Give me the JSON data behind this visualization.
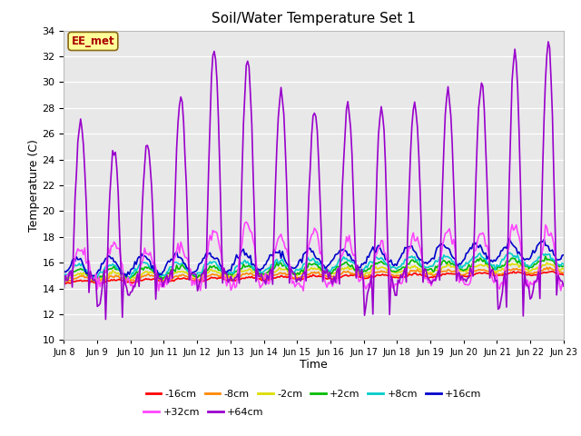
{
  "title": "Soil/Water Temperature Set 1",
  "xlabel": "Time",
  "ylabel": "Temperature (C)",
  "ylim": [
    10,
    34
  ],
  "yticks": [
    10,
    12,
    14,
    16,
    18,
    20,
    22,
    24,
    26,
    28,
    30,
    32,
    34
  ],
  "bg_color": "#e8e8e8",
  "fig_color": "#ffffff",
  "annotation_text": "EE_met",
  "annotation_bg": "#ffff99",
  "annotation_border": "#8b6914",
  "series_order": [
    "-16cm",
    "-8cm",
    "-2cm",
    "+2cm",
    "+8cm",
    "+16cm",
    "+32cm",
    "+64cm"
  ],
  "series": {
    "-16cm": {
      "color": "#ff0000",
      "lw": 1.2
    },
    "-8cm": {
      "color": "#ff8800",
      "lw": 1.2
    },
    "-2cm": {
      "color": "#dddd00",
      "lw": 1.2
    },
    "+2cm": {
      "color": "#00bb00",
      "lw": 1.2
    },
    "+8cm": {
      "color": "#00cccc",
      "lw": 1.2
    },
    "+16cm": {
      "color": "#0000cc",
      "lw": 1.2
    },
    "+32cm": {
      "color": "#ff44ff",
      "lw": 1.2
    },
    "+64cm": {
      "color": "#9900cc",
      "lw": 1.2
    }
  },
  "xtick_labels": [
    "Jun 8",
    "Jun 9",
    "Jun 10",
    "Jun 11",
    "Jun 12",
    "Jun 13",
    "Jun 14",
    "Jun 15",
    "Jun 16",
    "Jun 17",
    "Jun 18",
    "Jun 19",
    "Jun 20",
    "Jun 21",
    "Jun 22",
    "Jun 23"
  ],
  "num_days": 15,
  "points_per_day": 24,
  "legend_row1": [
    "-16cm",
    "-8cm",
    "-2cm",
    "+2cm",
    "+8cm",
    "+16cm"
  ],
  "legend_row2": [
    "+32cm",
    "+64cm"
  ]
}
